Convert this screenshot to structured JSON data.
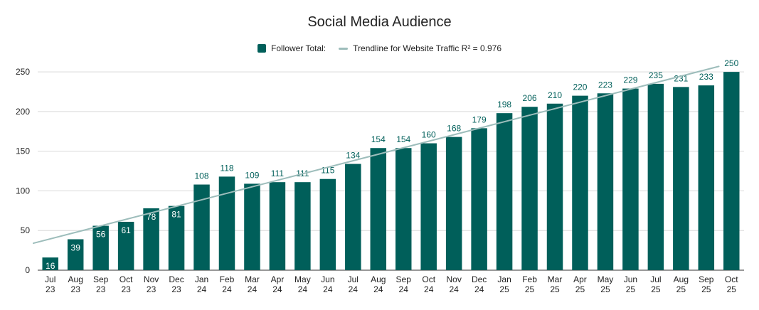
{
  "chart_data": {
    "type": "bar",
    "title": "Social Media Audience",
    "categories": [
      [
        "Jul",
        "23"
      ],
      [
        "Aug",
        "23"
      ],
      [
        "Sep",
        "23"
      ],
      [
        "Oct",
        "23"
      ],
      [
        "Nov",
        "23"
      ],
      [
        "Dec",
        "23"
      ],
      [
        "Jan",
        "24"
      ],
      [
        "Feb",
        "24"
      ],
      [
        "Mar",
        "24"
      ],
      [
        "Apr",
        "24"
      ],
      [
        "May",
        "24"
      ],
      [
        "Jun",
        "24"
      ],
      [
        "Jul",
        "24"
      ],
      [
        "Aug",
        "24"
      ],
      [
        "Sep",
        "24"
      ],
      [
        "Oct",
        "24"
      ],
      [
        "Nov",
        "24"
      ],
      [
        "Dec",
        "24"
      ],
      [
        "Jan",
        "25"
      ],
      [
        "Feb",
        "25"
      ],
      [
        "Mar",
        "25"
      ],
      [
        "Apr",
        "25"
      ],
      [
        "May",
        "25"
      ],
      [
        "Jun",
        "25"
      ],
      [
        "Jul",
        "25"
      ],
      [
        "Aug",
        "25"
      ],
      [
        "Sep",
        "25"
      ],
      [
        "Oct",
        "25"
      ]
    ],
    "series": [
      {
        "name": "Follower Total:",
        "values": [
          16,
          39,
          56,
          61,
          78,
          81,
          108,
          118,
          109,
          111,
          111,
          115,
          134,
          154,
          154,
          160,
          168,
          179,
          198,
          206,
          210,
          220,
          223,
          229,
          235,
          231,
          233,
          250
        ],
        "color": "#005f5a"
      }
    ],
    "trendline": {
      "name": "Trendline for Website Traffic R² = 0.976",
      "type": "linear",
      "start_value": 34,
      "end_value": 257,
      "color": "#9dbdbb"
    },
    "xlabel": "",
    "ylabel": "",
    "ylim": [
      0,
      260
    ],
    "yticks": [
      0,
      50,
      100,
      150,
      200,
      250
    ],
    "grid": true,
    "legend_position": "top"
  }
}
